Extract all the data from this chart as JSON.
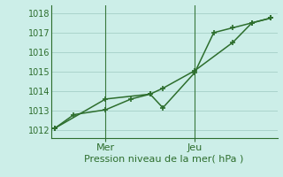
{
  "background_color": "#cceee8",
  "grid_color": "#aad4cc",
  "line_color": "#2d6e2d",
  "title": "Pression niveau de la mer( hPa )",
  "ylim": [
    1011.6,
    1018.4
  ],
  "yticks": [
    1012,
    1013,
    1014,
    1015,
    1016,
    1017,
    1018
  ],
  "day_labels": [
    {
      "label": "Mer",
      "x": 4
    },
    {
      "label": "Jeu",
      "x": 11
    }
  ],
  "vlines_x": [
    4,
    11
  ],
  "line1_x": [
    0,
    1.5,
    4,
    6,
    7.5,
    8.5,
    11,
    12.5,
    14,
    15.5,
    17
  ],
  "line1_y": [
    1012.1,
    1012.8,
    1013.05,
    1013.6,
    1013.85,
    1013.15,
    1014.95,
    1017.0,
    1017.25,
    1017.5,
    1017.75
  ],
  "line2_x": [
    0,
    4,
    7.5,
    8.5,
    11,
    14,
    15.5,
    17
  ],
  "line2_y": [
    1012.1,
    1013.6,
    1013.85,
    1014.15,
    1015.05,
    1016.5,
    1017.5,
    1017.75
  ],
  "xlim": [
    -0.3,
    17.5
  ],
  "marker_size": 5,
  "linewidth": 1.1,
  "figsize": [
    3.2,
    2.0
  ],
  "dpi": 100,
  "tick_fontsize": 7,
  "xlabel_fontsize": 8,
  "xtick_fontsize": 8
}
